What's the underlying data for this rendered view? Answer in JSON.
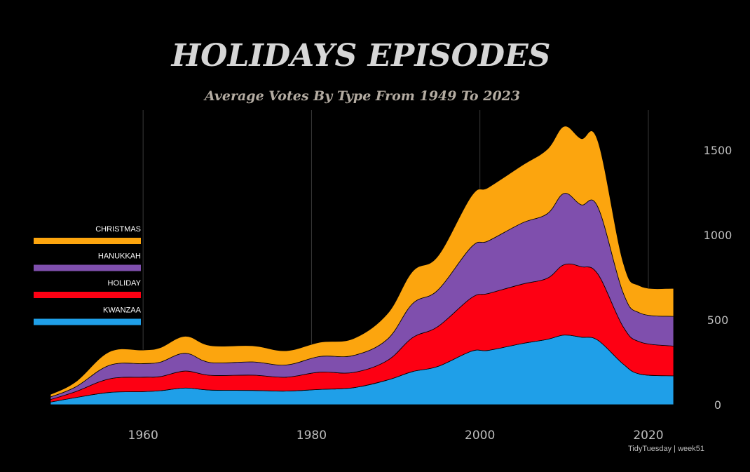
{
  "chart_data": {
    "type": "area",
    "title": "HOLIDAYS EPISODES",
    "subtitle": "Average Votes By Type From 1949 To 2023",
    "caption": "TidyTuesday | week51",
    "xlim": [
      1949,
      2023
    ],
    "ylim": [
      0,
      1700
    ],
    "x_ticks": [
      1960,
      1980,
      2000,
      2020
    ],
    "y_ticks": [
      0,
      500,
      1000,
      1500
    ],
    "grid": "vertical",
    "legend_position": "left",
    "legend_order": [
      "CHRISTMAS",
      "HANUKKAH",
      "HOLIDAY",
      "KWANZAA"
    ],
    "x": [
      1949,
      1952,
      1956,
      1960,
      1962,
      1965,
      1968,
      1973,
      1977,
      1981,
      1985,
      1989,
      1992,
      1995,
      1999,
      2001,
      2005,
      2008,
      2010,
      2012,
      2014,
      2017,
      2019,
      2023
    ],
    "series": [
      {
        "name": "KWANZAA",
        "color": "#1f9fe8",
        "values": [
          15,
          42,
          72,
          77,
          82,
          98,
          86,
          84,
          80,
          90,
          100,
          145,
          195,
          225,
          315,
          320,
          360,
          385,
          410,
          398,
          380,
          240,
          180,
          170
        ]
      },
      {
        "name": "HOLIDAY",
        "color": "#fd0013",
        "values": [
          15,
          35,
          80,
          85,
          83,
          100,
          87,
          90,
          82,
          102,
          90,
          115,
          200,
          235,
          315,
          335,
          350,
          360,
          415,
          415,
          390,
          220,
          190,
          175
        ]
      },
      {
        "name": "HANUKKAH",
        "color": "#7f4fad",
        "values": [
          15,
          28,
          80,
          80,
          85,
          105,
          75,
          78,
          72,
          92,
          100,
          125,
          200,
          215,
          300,
          310,
          360,
          380,
          420,
          365,
          395,
          200,
          170,
          175
        ]
      },
      {
        "name": "CHRISTMAS",
        "color": "#fca50e",
        "values": [
          15,
          30,
          80,
          80,
          85,
          100,
          100,
          95,
          84,
          84,
          100,
          150,
          190,
          200,
          300,
          315,
          340,
          380,
          395,
          390,
          390,
          180,
          160,
          165
        ]
      }
    ]
  }
}
